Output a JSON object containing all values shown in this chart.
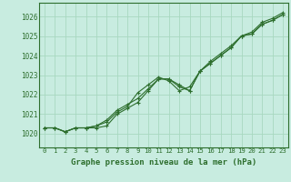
{
  "title": "Graphe pression niveau de la mer (hPa)",
  "background_color": "#c8ece0",
  "grid_color": "#a8d8c0",
  "line_color": "#2d6e2d",
  "x_ticks": [
    0,
    1,
    2,
    3,
    4,
    5,
    6,
    7,
    8,
    9,
    10,
    11,
    12,
    13,
    14,
    15,
    16,
    17,
    18,
    19,
    20,
    21,
    22,
    23
  ],
  "y_ticks": [
    1020,
    1021,
    1022,
    1023,
    1024,
    1025,
    1026
  ],
  "ylim": [
    1019.3,
    1026.7
  ],
  "xlim": [
    -0.5,
    23.5
  ],
  "series1": [
    1020.3,
    1020.3,
    1020.1,
    1020.3,
    1020.3,
    1020.3,
    1020.4,
    1021.0,
    1021.3,
    1021.6,
    1022.2,
    1022.8,
    1022.8,
    1022.4,
    1022.2,
    1023.2,
    1023.6,
    1024.0,
    1024.4,
    1025.0,
    1025.1,
    1025.6,
    1025.8,
    1026.1
  ],
  "series2": [
    1020.3,
    1020.3,
    1020.1,
    1020.3,
    1020.3,
    1020.4,
    1020.6,
    1021.1,
    1021.4,
    1022.1,
    1022.5,
    1022.9,
    1022.7,
    1022.2,
    1022.4,
    1023.2,
    1023.6,
    1024.0,
    1024.4,
    1025.0,
    1025.1,
    1025.6,
    1025.8,
    1026.1
  ],
  "series3": [
    1020.3,
    1020.3,
    1020.1,
    1020.3,
    1020.3,
    1020.4,
    1020.7,
    1021.2,
    1021.5,
    1021.8,
    1022.3,
    1022.8,
    1022.8,
    1022.5,
    1022.2,
    1023.2,
    1023.7,
    1024.1,
    1024.5,
    1025.0,
    1025.2,
    1025.7,
    1025.9,
    1026.2
  ]
}
